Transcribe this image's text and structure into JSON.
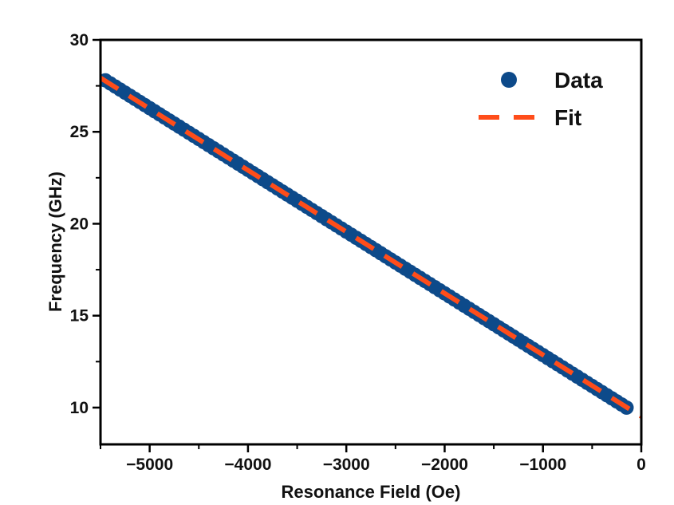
{
  "chart_data": {
    "type": "scatter",
    "title": "",
    "xlabel": "Resonance Field (Oe)",
    "ylabel": "Frequency (GHz)",
    "xlim": [
      -5500,
      0
    ],
    "ylim": [
      8,
      30
    ],
    "x_ticks": [
      -5000,
      -4000,
      -3000,
      -2000,
      -1000,
      0
    ],
    "x_tick_labels": [
      "−5000",
      "−4000",
      "−3000",
      "−2000",
      "−1000",
      "0"
    ],
    "y_ticks": [
      10,
      15,
      20,
      25,
      30
    ],
    "y_tick_labels": [
      "10",
      "15",
      "20",
      "25",
      "30"
    ],
    "grid": false,
    "legend_position": "top-right",
    "series": [
      {
        "name": "Data",
        "kind": "markers",
        "color": "#0d4a8a",
        "x_start": -5450,
        "x_end": -150,
        "x_step": 50,
        "y_at_x_start": 27.8,
        "y_at_x_end": 10.0
      },
      {
        "name": "Fit",
        "kind": "dashed-line",
        "color": "#ff4d1a",
        "x": [
          -5500,
          0
        ],
        "y": [
          27.93,
          9.52
        ]
      }
    ]
  }
}
